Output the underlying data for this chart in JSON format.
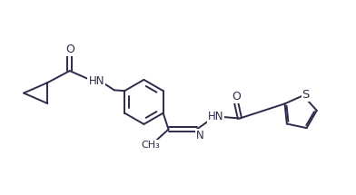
{
  "bg_color": "#ffffff",
  "line_color": "#2c2c4a",
  "line_width": 1.4,
  "font_size": 8.5,
  "figsize": [
    3.92,
    2.15
  ],
  "dpi": 100,
  "xlim": [
    -0.5,
    11.5
  ],
  "ylim": [
    -0.2,
    5.5
  ]
}
